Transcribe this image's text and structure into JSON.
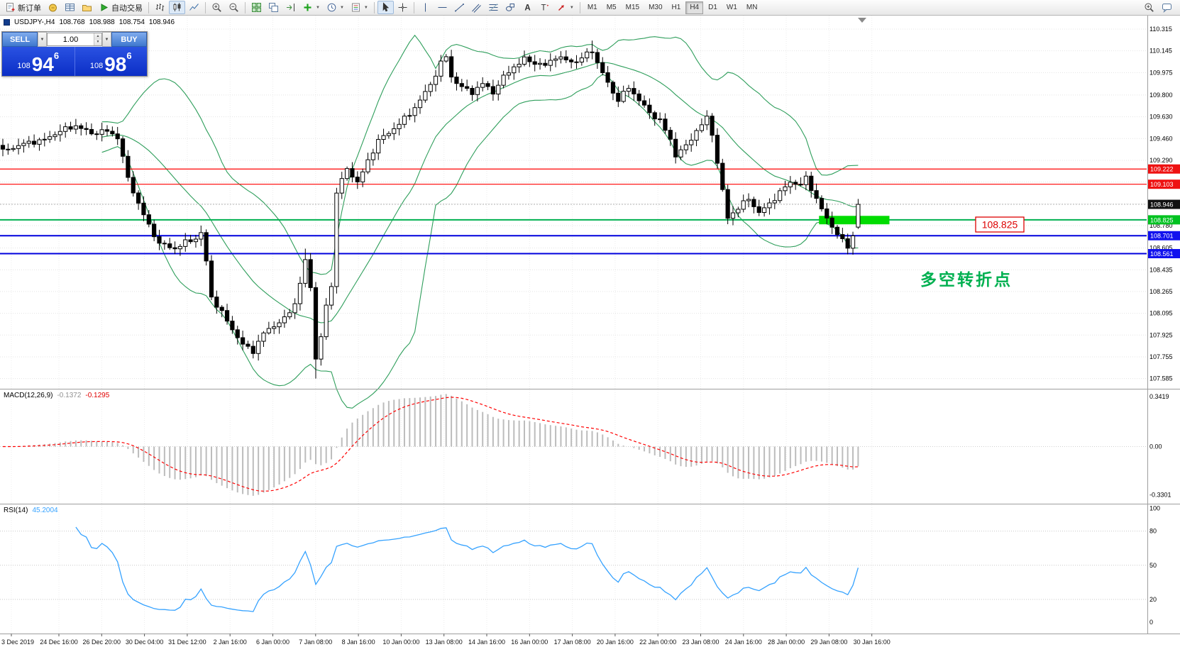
{
  "glyphs": {
    "dropdown": "▼",
    "spin_up": "▲",
    "spin_down": "▼"
  },
  "toolbar": {
    "items": [
      {
        "type": "button",
        "name": "new-order-button",
        "icon": "doc-plus",
        "label": "新订单"
      },
      {
        "type": "icon",
        "name": "profile-button",
        "icon": "coin"
      },
      {
        "type": "icon",
        "name": "market-watch-button",
        "icon": "grid-blue"
      },
      {
        "type": "icon",
        "name": "data-folder-button",
        "icon": "folder"
      },
      {
        "type": "button",
        "name": "autotrading-button",
        "icon": "play-green",
        "label": "自动交易"
      },
      {
        "type": "sep"
      },
      {
        "type": "icon",
        "name": "bar-chart-button",
        "icon": "bars"
      },
      {
        "type": "icon",
        "name": "candlestick-chart-button",
        "icon": "candles",
        "active": true
      },
      {
        "type": "icon",
        "name": "line-chart-button",
        "icon": "line"
      },
      {
        "type": "sep"
      },
      {
        "type": "icon",
        "name": "zoom-in-button",
        "icon": "zoom-in"
      },
      {
        "type": "icon",
        "name": "zoom-out-button",
        "icon": "zoom-out"
      },
      {
        "type": "sep"
      },
      {
        "type": "icon",
        "name": "tile-windows-button",
        "icon": "tile"
      },
      {
        "type": "icon",
        "name": "cascade-windows-button",
        "icon": "cascade"
      },
      {
        "type": "icon",
        "name": "chart-shift-button",
        "icon": "shift"
      },
      {
        "type": "icon",
        "name": "indicators-button",
        "icon": "plus-green",
        "dropdown": true
      },
      {
        "type": "icon",
        "name": "periods-button",
        "icon": "clock",
        "dropdown": true
      },
      {
        "type": "icon",
        "name": "templates-button",
        "icon": "template",
        "dropdown": true
      },
      {
        "type": "sep"
      },
      {
        "type": "icon",
        "name": "cursor-button",
        "icon": "cursor",
        "active": true
      },
      {
        "type": "icon",
        "name": "crosshair-button",
        "icon": "crosshair"
      },
      {
        "type": "sep"
      },
      {
        "type": "icon",
        "name": "vertical-line-button",
        "icon": "vline"
      },
      {
        "type": "icon",
        "name": "horizontal-line-button",
        "icon": "hline"
      },
      {
        "type": "icon",
        "name": "trendline-button",
        "icon": "trend"
      },
      {
        "type": "icon",
        "name": "channel-button",
        "icon": "channel"
      },
      {
        "type": "icon",
        "name": "fibonacci-button",
        "icon": "fibo"
      },
      {
        "type": "icon",
        "name": "shapes-button",
        "icon": "shapes"
      },
      {
        "type": "icon",
        "name": "text-button",
        "icon": "text-a"
      },
      {
        "type": "icon",
        "name": "text-label-button",
        "icon": "label-t"
      },
      {
        "type": "icon",
        "name": "arrows-button",
        "icon": "arrow-shapes",
        "dropdown": true
      },
      {
        "type": "sep"
      },
      {
        "type": "tf",
        "label": "M1"
      },
      {
        "type": "tf",
        "label": "M5"
      },
      {
        "type": "tf",
        "label": "M15"
      },
      {
        "type": "tf",
        "label": "M30"
      },
      {
        "type": "tf",
        "label": "H1"
      },
      {
        "type": "tf",
        "label": "H4",
        "active": true
      },
      {
        "type": "tf",
        "label": "D1"
      },
      {
        "type": "tf",
        "label": "W1"
      },
      {
        "type": "tf",
        "label": "MN"
      }
    ],
    "right_items": [
      {
        "type": "icon",
        "name": "search-button",
        "icon": "zoom-in"
      },
      {
        "type": "icon",
        "name": "community-button",
        "icon": "chat"
      }
    ]
  },
  "symbol_bar": {
    "symbol": "USDJPY-,H4",
    "open": "108.768",
    "high": "108.988",
    "low": "108.754",
    "close": "108.946"
  },
  "trade_panel": {
    "sell_label": "SELL",
    "buy_label": "BUY",
    "volume": "1.00",
    "sell_price_prefix": "108",
    "sell_price_big": "94",
    "sell_price_sup": "6",
    "buy_price_prefix": "108",
    "buy_price_big": "98",
    "buy_price_sup": "6"
  },
  "annotations": {
    "price_callout": "108.825",
    "turning_point": "多空转折点"
  },
  "chart_data": [
    {
      "type": "candlestick",
      "symbol": "USDJPY-",
      "timeframe": "H4",
      "current_price": 108.946,
      "bars_count": 165,
      "close_keypoints": [
        [
          0,
          109.36
        ],
        [
          4,
          109.42
        ],
        [
          8,
          109.45
        ],
        [
          11,
          109.52
        ],
        [
          14,
          109.56
        ],
        [
          17,
          109.5
        ],
        [
          20,
          109.52
        ],
        [
          22,
          109.47
        ],
        [
          24,
          109.15
        ],
        [
          26,
          108.95
        ],
        [
          28,
          108.78
        ],
        [
          30,
          108.64
        ],
        [
          33,
          108.6
        ],
        [
          35,
          108.65
        ],
        [
          37,
          108.68
        ],
        [
          38,
          108.72
        ],
        [
          39,
          108.5
        ],
        [
          40,
          108.22
        ],
        [
          42,
          108.1
        ],
        [
          44,
          107.97
        ],
        [
          46,
          107.85
        ],
        [
          48,
          107.8
        ],
        [
          50,
          107.94
        ],
        [
          52,
          108.0
        ],
        [
          54,
          108.05
        ],
        [
          56,
          108.17
        ],
        [
          58,
          108.5
        ],
        [
          59,
          108.3
        ],
        [
          60,
          107.75
        ],
        [
          61,
          107.9
        ],
        [
          62,
          108.16
        ],
        [
          63,
          108.3
        ],
        [
          64,
          109.05
        ],
        [
          66,
          109.22
        ],
        [
          68,
          109.12
        ],
        [
          70,
          109.28
        ],
        [
          72,
          109.45
        ],
        [
          74,
          109.5
        ],
        [
          76,
          109.58
        ],
        [
          78,
          109.65
        ],
        [
          80,
          109.76
        ],
        [
          82,
          109.88
        ],
        [
          84,
          110.05
        ],
        [
          85,
          110.1
        ],
        [
          86,
          109.94
        ],
        [
          88,
          109.86
        ],
        [
          90,
          109.82
        ],
        [
          92,
          109.89
        ],
        [
          94,
          109.82
        ],
        [
          96,
          109.94
        ],
        [
          98,
          110.02
        ],
        [
          100,
          110.08
        ],
        [
          102,
          110.05
        ],
        [
          104,
          110.03
        ],
        [
          106,
          110.1
        ],
        [
          108,
          110.07
        ],
        [
          110,
          110.06
        ],
        [
          112,
          110.12
        ],
        [
          113,
          110.15
        ],
        [
          114,
          110.05
        ],
        [
          115,
          109.97
        ],
        [
          117,
          109.82
        ],
        [
          118,
          109.76
        ],
        [
          120,
          109.86
        ],
        [
          122,
          109.76
        ],
        [
          124,
          109.66
        ],
        [
          126,
          109.6
        ],
        [
          128,
          109.45
        ],
        [
          129,
          109.33
        ],
        [
          131,
          109.4
        ],
        [
          133,
          109.52
        ],
        [
          135,
          109.62
        ],
        [
          136,
          109.5
        ],
        [
          137,
          109.27
        ],
        [
          138,
          109.05
        ],
        [
          139,
          108.84
        ],
        [
          141,
          108.92
        ],
        [
          143,
          108.99
        ],
        [
          145,
          108.88
        ],
        [
          147,
          108.95
        ],
        [
          149,
          109.04
        ],
        [
          151,
          109.12
        ],
        [
          153,
          109.1
        ],
        [
          154,
          109.15
        ],
        [
          156,
          108.99
        ],
        [
          158,
          108.83
        ],
        [
          160,
          108.72
        ],
        [
          161,
          108.66
        ],
        [
          162,
          108.61
        ],
        [
          163,
          108.7
        ],
        [
          164,
          108.946
        ]
      ],
      "extreme_wicks": [
        {
          "bar": 58,
          "high": 108.6
        },
        {
          "bar": 60,
          "low": 107.585
        },
        {
          "bar": 113,
          "high": 110.225
        },
        {
          "bar": 162,
          "low": 108.555
        }
      ],
      "last_bar": {
        "o": 108.768,
        "h": 108.988,
        "l": 108.754,
        "c": 108.946
      },
      "bollinger": {
        "period": 20,
        "deviation": 2,
        "color": "#2e9e5b"
      },
      "hlines": [
        {
          "price": 109.222,
          "color": "#ff0000",
          "width": 1.2
        },
        {
          "price": 109.103,
          "color": "#ff0000",
          "width": 1.2
        },
        {
          "price": 108.825,
          "color": "#00b050",
          "width": 2
        },
        {
          "price": 108.701,
          "color": "#0000dd",
          "width": 2
        },
        {
          "price": 108.561,
          "color": "#0000dd",
          "width": 2
        }
      ],
      "highlight_box": {
        "bar_start": 156.5,
        "bar_end": 170,
        "price_top": 108.856,
        "price_bottom": 108.79,
        "color": "#00dc00"
      },
      "y_axis": {
        "ticks": [
          {
            "label": "110.315",
            "price": 110.315
          },
          {
            "label": "110.145",
            "price": 110.145
          },
          {
            "label": "109.975",
            "price": 109.975
          },
          {
            "label": "109.800",
            "price": 109.8
          },
          {
            "label": "109.630",
            "price": 109.63
          },
          {
            "label": "109.460",
            "price": 109.46
          },
          {
            "label": "109.290",
            "price": 109.29
          },
          {
            "label": "108.780",
            "price": 108.78
          },
          {
            "label": "108.605",
            "price": 108.605
          },
          {
            "label": "108.435",
            "price": 108.435
          },
          {
            "label": "108.265",
            "price": 108.265
          },
          {
            "label": "108.095",
            "price": 108.095
          },
          {
            "label": "107.925",
            "price": 107.925
          },
          {
            "label": "107.755",
            "price": 107.755
          },
          {
            "label": "107.585",
            "price": 107.585
          }
        ],
        "grid_extra": [
          109.12,
          108.95
        ]
      },
      "price_tags": [
        {
          "label": "109.222",
          "price": 109.222,
          "bg": "#ee1111",
          "fg": "#ffffff"
        },
        {
          "label": "109.103",
          "price": 109.103,
          "bg": "#ee1111",
          "fg": "#ffffff"
        },
        {
          "label": "108.946",
          "price": 108.946,
          "bg": "#111111",
          "fg": "#ffffff"
        },
        {
          "label": "108.825",
          "price": 108.825,
          "bg": "#00c220",
          "fg": "#ffffff"
        },
        {
          "label": "108.701",
          "price": 108.701,
          "bg": "#1111ee",
          "fg": "#ffffff"
        },
        {
          "label": "108.561",
          "price": 108.561,
          "bg": "#1111ee",
          "fg": "#ffffff"
        }
      ],
      "x_axis": {
        "labels": [
          "3 Dec 2019",
          "24 Dec 16:00",
          "26 Dec 20:00",
          "30 Dec 04:00",
          "31 Dec 12:00",
          "2 Jan 16:00",
          "6 Jan 00:00",
          "7 Jan 08:00",
          "8 Jan 16:00",
          "10 Jan 00:00",
          "13 Jan 08:00",
          "14 Jan 16:00",
          "16 Jan 00:00",
          "17 Jan 08:00",
          "20 Jan 16:00",
          "22 Jan 00:00",
          "23 Jan 08:00",
          "24 Jan 16:00",
          "28 Jan 00:00",
          "29 Jan 08:00",
          "30 Jan 16:00"
        ]
      }
    },
    {
      "type": "macd",
      "label": "MACD(12,26,9)",
      "value_main": "-0.1372",
      "value_signal": "-0.1295",
      "params": {
        "fast": 12,
        "slow": 26,
        "signal": 9
      },
      "histogram_color": "#bcbcbc",
      "signal_color": "#ff0000",
      "scale_labels": [
        {
          "label": "0.3419",
          "value": 0.3419
        },
        {
          "label": "0.00",
          "value": 0
        },
        {
          "label": "-0.3301",
          "value": -0.3301
        }
      ]
    },
    {
      "type": "rsi",
      "label": "RSI(14)",
      "value": "45.2004",
      "period": 14,
      "line_color": "#35a2ff",
      "levels": [
        80,
        50,
        20
      ],
      "scale_labels": [
        {
          "label": "100",
          "value": 100
        },
        {
          "label": "80",
          "value": 80
        },
        {
          "label": "50",
          "value": 50
        },
        {
          "label": "20",
          "value": 20
        },
        {
          "label": "0",
          "value": 0
        }
      ]
    }
  ]
}
